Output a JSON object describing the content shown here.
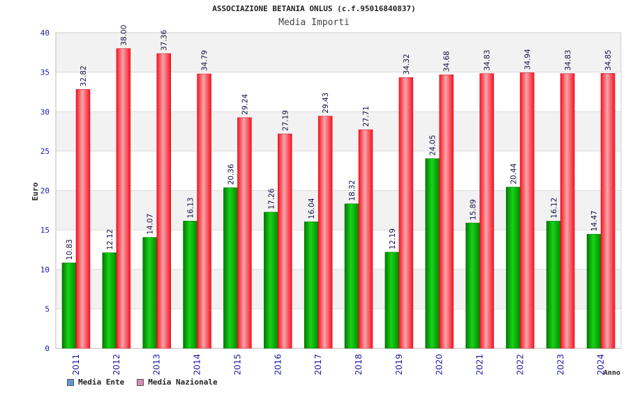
{
  "chart_data": {
    "type": "bar",
    "title": "ASSOCIAZIONE BETANIA ONLUS (c.f.95016840837)",
    "subtitle": "Media Importi",
    "xlabel": "Anno",
    "ylabel": "Euro",
    "ylim": [
      0,
      40
    ],
    "yticks": [
      "0",
      "5",
      "10",
      "15",
      "20",
      "25",
      "30",
      "35",
      "40"
    ],
    "grid": true,
    "legend_position": "bottom-left",
    "categories": [
      "2011",
      "2012",
      "2013",
      "2014",
      "2015",
      "2016",
      "2017",
      "2018",
      "2019",
      "2020",
      "2021",
      "2022",
      "2023",
      "2024"
    ],
    "series": [
      {
        "name": "Media Ente",
        "color": "#00b400",
        "legend_color": "#5b9bd5",
        "values": [
          10.83,
          12.12,
          14.07,
          16.13,
          20.36,
          17.26,
          16.04,
          18.32,
          12.19,
          24.05,
          15.89,
          20.44,
          16.12,
          14.47
        ],
        "labels": [
          "10.83",
          "12.12",
          "14.07",
          "16.13",
          "20.36",
          "17.26",
          "16.04",
          "18.32",
          "12.19",
          "24.05",
          "15.89",
          "20.44",
          "16.12",
          "14.47"
        ]
      },
      {
        "name": "Media Nazionale",
        "color": "#e8202a",
        "legend_color": "#d98cb3",
        "values": [
          32.82,
          38.0,
          37.36,
          34.79,
          29.24,
          27.19,
          29.43,
          27.71,
          34.32,
          34.68,
          34.83,
          34.94,
          34.83,
          34.85
        ],
        "labels": [
          "32.82",
          "38.00",
          "37.36",
          "34.79",
          "29.24",
          "27.19",
          "29.43",
          "27.71",
          "34.32",
          "34.68",
          "34.83",
          "34.94",
          "34.83",
          "34.85"
        ]
      }
    ]
  }
}
